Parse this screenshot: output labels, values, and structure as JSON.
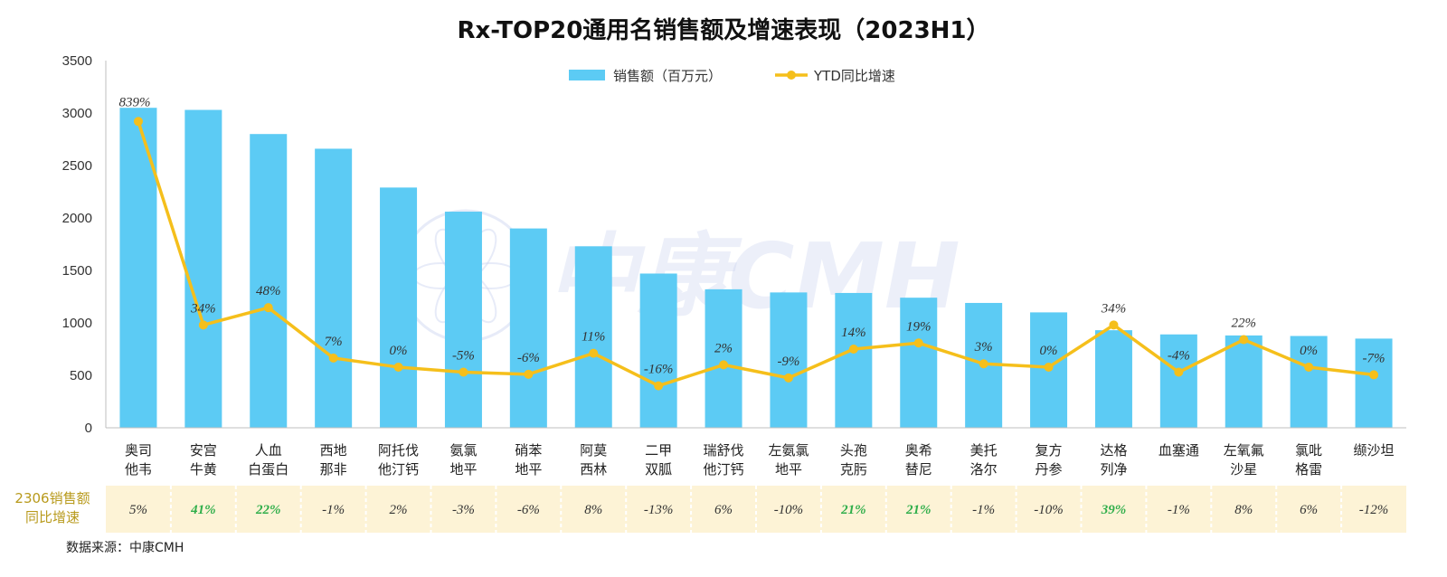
{
  "chart_data": {
    "type": "bar",
    "title": "Rx-TOP20通用名销售额及增速表现（2023H1）",
    "categories": [
      [
        "奥司",
        "他韦"
      ],
      [
        "安宫",
        "牛黄"
      ],
      [
        "人血",
        "白蛋白"
      ],
      [
        "西地",
        "那非"
      ],
      [
        "阿托伐",
        "他汀钙"
      ],
      [
        "氨氯",
        "地平"
      ],
      [
        "硝苯",
        "地平"
      ],
      [
        "阿莫",
        "西林"
      ],
      [
        "二甲",
        "双胍"
      ],
      [
        "瑞舒伐",
        "他汀钙"
      ],
      [
        "左氨氯",
        "地平"
      ],
      [
        "头孢",
        "克肟"
      ],
      [
        "奥希",
        "替尼"
      ],
      [
        "美托",
        "洛尔"
      ],
      [
        "复方",
        "丹参"
      ],
      [
        "达格",
        "列净"
      ],
      [
        "血塞通"
      ],
      [
        "左氧氟",
        "沙星"
      ],
      [
        "氯吡",
        "格雷"
      ],
      [
        "缬沙坦"
      ]
    ],
    "series": [
      {
        "name": "销售额（百万元）",
        "kind": "bar",
        "color": "#5ccbf4",
        "values": [
          3050,
          3030,
          2800,
          2660,
          2290,
          2060,
          1900,
          1730,
          1470,
          1320,
          1290,
          1285,
          1240,
          1190,
          1100,
          930,
          890,
          880,
          875,
          850
        ]
      },
      {
        "name": "YTD同比增速",
        "kind": "line",
        "color": "#f5bf1b",
        "labels": [
          "839%",
          "34%",
          "48%",
          "7%",
          "0%",
          "-5%",
          "-6%",
          "11%",
          "-16%",
          "2%",
          "-9%",
          "14%",
          "19%",
          "3%",
          "0%",
          "34%",
          "-4%",
          "22%",
          "0%",
          "-7%"
        ],
        "values": [
          2920,
          980,
          1145,
          665,
          578,
          530,
          510,
          710,
          400,
          600,
          475,
          750,
          808,
          610,
          578,
          980,
          530,
          840,
          578,
          505
        ]
      }
    ],
    "ylim": [
      0,
      3500
    ],
    "yticks": [
      0,
      500,
      1000,
      1500,
      2000,
      2500,
      3000,
      3500
    ],
    "grid": false,
    "legend_position": "top-center",
    "yoy_row": {
      "title_lines": [
        "2306销售额",
        "同比增速"
      ],
      "values": [
        "5%",
        "41%",
        "22%",
        "-1%",
        "2%",
        "-3%",
        "-6%",
        "8%",
        "-13%",
        "6%",
        "-10%",
        "21%",
        "21%",
        "-1%",
        "-10%",
        "39%",
        "-1%",
        "8%",
        "6%",
        "-12%"
      ],
      "highlight": [
        false,
        true,
        true,
        false,
        false,
        false,
        false,
        false,
        false,
        false,
        false,
        true,
        true,
        false,
        false,
        true,
        false,
        false,
        false,
        false
      ],
      "background": "#fdf3d6",
      "normal_color": "#333333",
      "highlight_color": "#2fae4a"
    }
  },
  "watermark": "中康CMH",
  "source": "数据来源：中康CMH",
  "colors": {
    "axis": "#bfbfbf",
    "title": "#111111"
  }
}
